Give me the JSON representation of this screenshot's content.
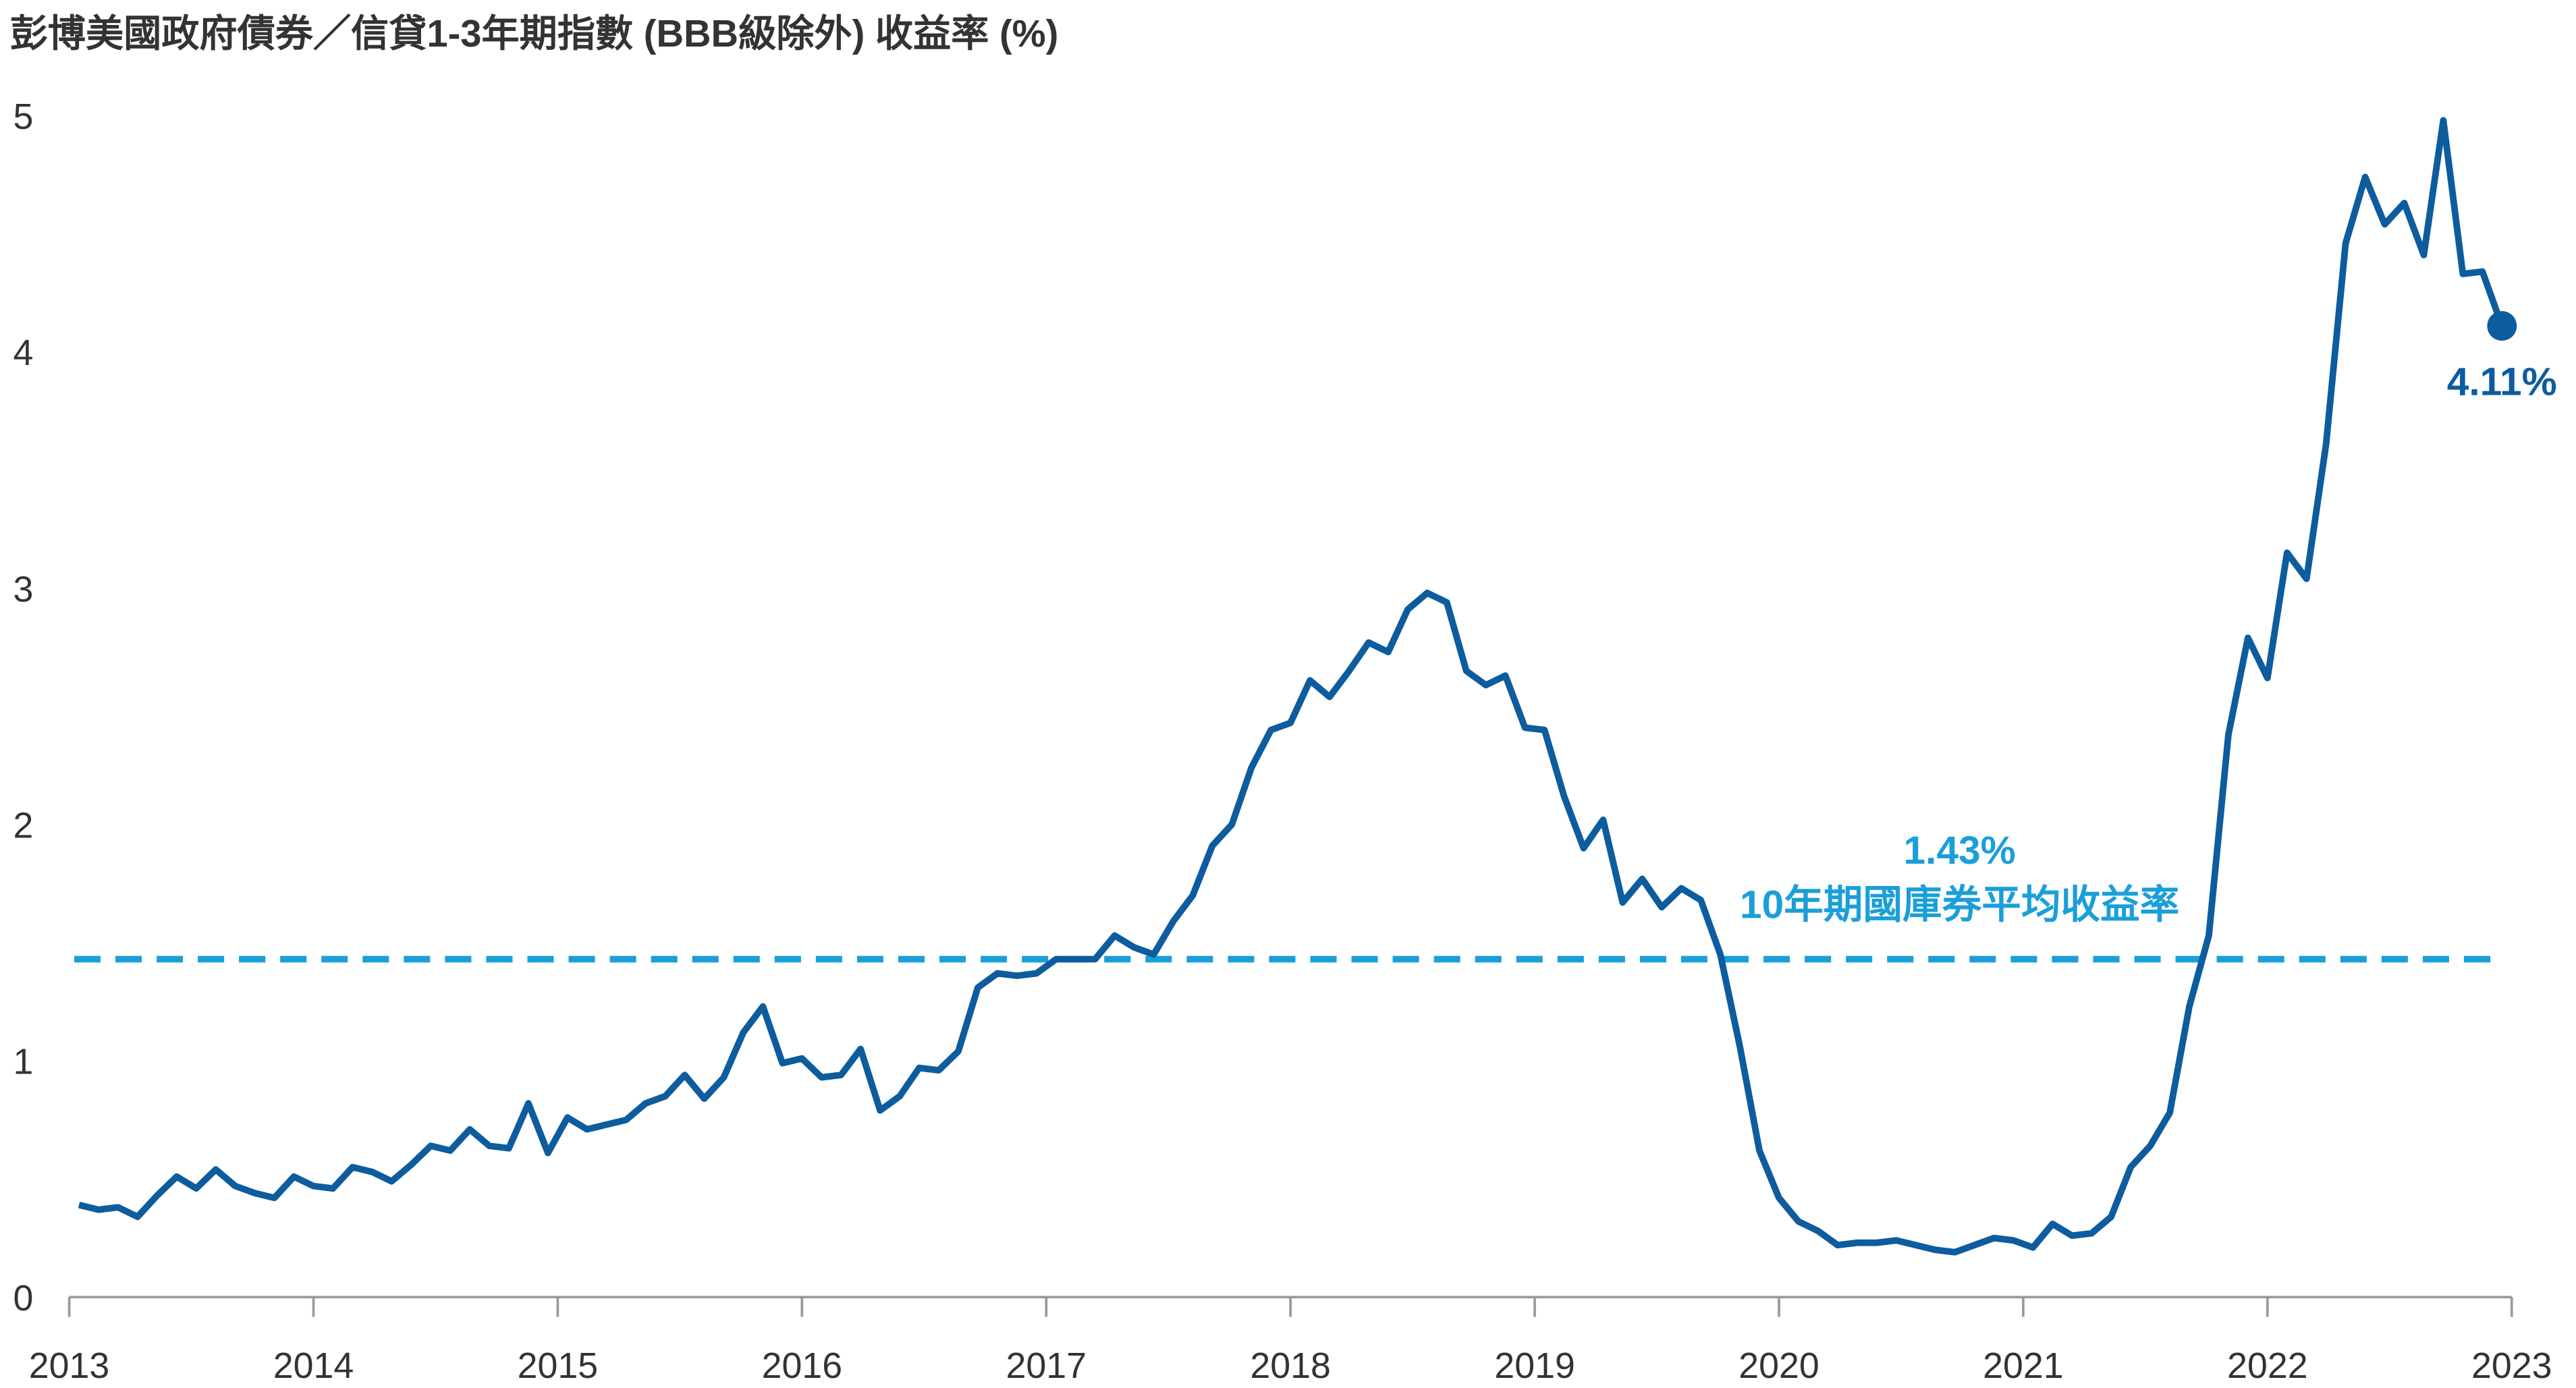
{
  "chart_data": {
    "type": "line",
    "title": "彭博美國政府債券／信貸1-3年期指數 (BBB級除外) 收益率 (%)",
    "x": [
      2013.04,
      2013.12,
      2013.2,
      2013.28,
      2013.36,
      2013.44,
      2013.52,
      2013.6,
      2013.68,
      2013.76,
      2013.84,
      2013.92,
      2014.0,
      2014.08,
      2014.16,
      2014.24,
      2014.32,
      2014.4,
      2014.48,
      2014.56,
      2014.64,
      2014.72,
      2014.8,
      2014.88,
      2014.96,
      2015.04,
      2015.12,
      2015.2,
      2015.28,
      2015.36,
      2015.44,
      2015.52,
      2015.6,
      2015.68,
      2015.76,
      2015.84,
      2015.92,
      2016.0,
      2016.08,
      2016.16,
      2016.24,
      2016.32,
      2016.4,
      2016.48,
      2016.56,
      2016.64,
      2016.72,
      2016.8,
      2016.88,
      2016.96,
      2017.04,
      2017.12,
      2017.2,
      2017.28,
      2017.36,
      2017.44,
      2017.52,
      2017.6,
      2017.68,
      2017.76,
      2017.84,
      2017.92,
      2018.0,
      2018.08,
      2018.16,
      2018.24,
      2018.32,
      2018.4,
      2018.48,
      2018.56,
      2018.64,
      2018.72,
      2018.8,
      2018.88,
      2018.96,
      2019.04,
      2019.12,
      2019.2,
      2019.28,
      2019.36,
      2019.44,
      2019.52,
      2019.6,
      2019.68,
      2019.76,
      2019.84,
      2019.92,
      2020.0,
      2020.08,
      2020.16,
      2020.24,
      2020.32,
      2020.4,
      2020.48,
      2020.56,
      2020.64,
      2020.72,
      2020.8,
      2020.88,
      2020.96,
      2021.04,
      2021.12,
      2021.2,
      2021.28,
      2021.36,
      2021.44,
      2021.52,
      2021.6,
      2021.68,
      2021.76,
      2021.84,
      2021.92,
      2022.0,
      2022.08,
      2022.16,
      2022.24,
      2022.32,
      2022.4,
      2022.48,
      2022.56,
      2022.64,
      2022.72,
      2022.8,
      2022.88,
      2022.96
    ],
    "series": [
      {
        "name": "彭博美國政府債券／信貸1-3年期指數 (BBB級除外)",
        "color": "#0d5c9e",
        "values": [
          0.39,
          0.37,
          0.38,
          0.34,
          0.43,
          0.51,
          0.46,
          0.54,
          0.47,
          0.44,
          0.42,
          0.51,
          0.47,
          0.46,
          0.55,
          0.53,
          0.49,
          0.56,
          0.64,
          0.62,
          0.71,
          0.64,
          0.63,
          0.82,
          0.61,
          0.76,
          0.71,
          0.73,
          0.75,
          0.82,
          0.85,
          0.94,
          0.84,
          0.93,
          1.12,
          1.23,
          0.99,
          1.01,
          0.93,
          0.94,
          1.05,
          0.79,
          0.85,
          0.97,
          0.96,
          1.04,
          1.31,
          1.37,
          1.36,
          1.37,
          1.43,
          1.43,
          1.43,
          1.53,
          1.48,
          1.45,
          1.59,
          1.7,
          1.91,
          2.0,
          2.24,
          2.4,
          2.43,
          2.61,
          2.54,
          2.65,
          2.77,
          2.73,
          2.91,
          2.98,
          2.94,
          2.65,
          2.59,
          2.63,
          2.41,
          2.4,
          2.12,
          1.9,
          2.02,
          1.67,
          1.77,
          1.65,
          1.73,
          1.68,
          1.45,
          1.06,
          0.62,
          0.42,
          0.32,
          0.28,
          0.22,
          0.23,
          0.23,
          0.24,
          0.22,
          0.2,
          0.19,
          0.22,
          0.25,
          0.24,
          0.21,
          0.31,
          0.26,
          0.27,
          0.34,
          0.55,
          0.64,
          0.78,
          1.23,
          1.53,
          2.38,
          2.79,
          2.62,
          3.15,
          3.04,
          3.61,
          4.46,
          4.74,
          4.54,
          4.63,
          4.41,
          4.98,
          4.33,
          4.34,
          4.11
        ],
        "end_label": "4.11%"
      }
    ],
    "reference_line": {
      "value": 1.43,
      "label": "1.43%",
      "text": "10年期國庫券平均收益率",
      "color": "#1a9fd9"
    },
    "xlim": [
      2013,
      2023
    ],
    "xticks": [
      2013,
      2014,
      2015,
      2016,
      2017,
      2018,
      2019,
      2020,
      2021,
      2022,
      2023
    ],
    "ylim": [
      0,
      5
    ],
    "yticks": [
      0,
      1,
      2,
      3,
      4,
      5
    ],
    "grid": false
  }
}
